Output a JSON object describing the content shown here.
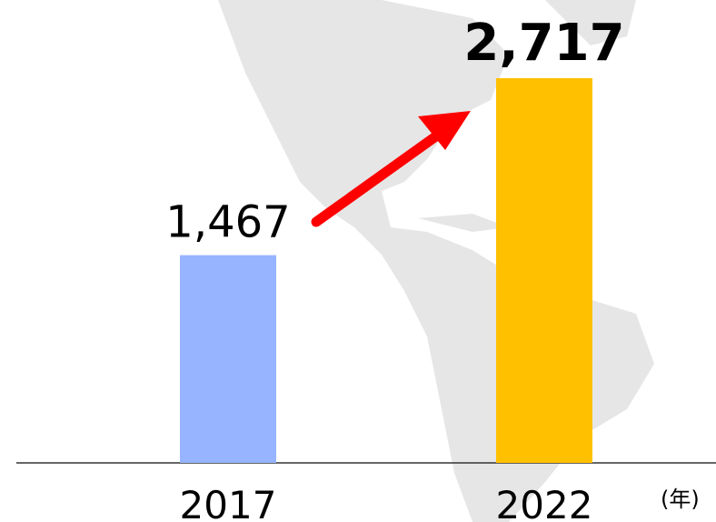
{
  "chart_data": {
    "type": "bar",
    "categories": [
      "2017",
      "2022"
    ],
    "values": [
      1467,
      2717
    ],
    "value_labels": [
      "1,467",
      "2,717"
    ],
    "colors": [
      "#96b4ff",
      "#ffc000"
    ],
    "x_label": "(年)"
  }
}
